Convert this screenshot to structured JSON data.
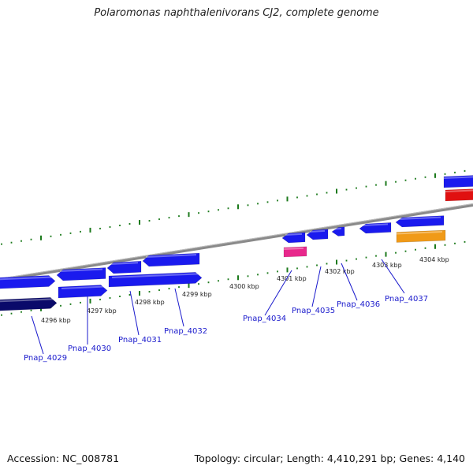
{
  "title": "Polaromonas naphthalenivorans CJ2, complete genome",
  "footer": {
    "accession": "Accession: NC_008781",
    "topology": "Topology: circular; Length: 4,410,291 bp; Genes: 4,140"
  },
  "colors": {
    "gene_blue": "#1a1aee",
    "gene_dark": "#0a0a6a",
    "gene_pink": "#e8288c",
    "gene_orange": "#f09a18",
    "gene_red": "#e01010",
    "tick_green": "#1c7a1c",
    "backbone": "#8a8a8a",
    "label_blue": "#1a1acc"
  },
  "kbp_labels": [
    {
      "text": "4296 kbp"
    },
    {
      "text": "4297 kbp"
    },
    {
      "text": "4298 kbp"
    },
    {
      "text": "4299 kbp"
    },
    {
      "text": "4300 kbp"
    },
    {
      "text": "4301 kbp"
    },
    {
      "text": "4302 kbp"
    },
    {
      "text": "4303 kbp"
    },
    {
      "text": "4304 kbp"
    }
  ],
  "gene_labels": [
    {
      "text": "Pnap_4029"
    },
    {
      "text": "Pnap_4030"
    },
    {
      "text": "Pnap_4031"
    },
    {
      "text": "Pnap_4032"
    },
    {
      "text": "Pnap_4034"
    },
    {
      "text": "Pnap_4035"
    },
    {
      "text": "Pnap_4036"
    },
    {
      "text": "Pnap_4037"
    }
  ]
}
